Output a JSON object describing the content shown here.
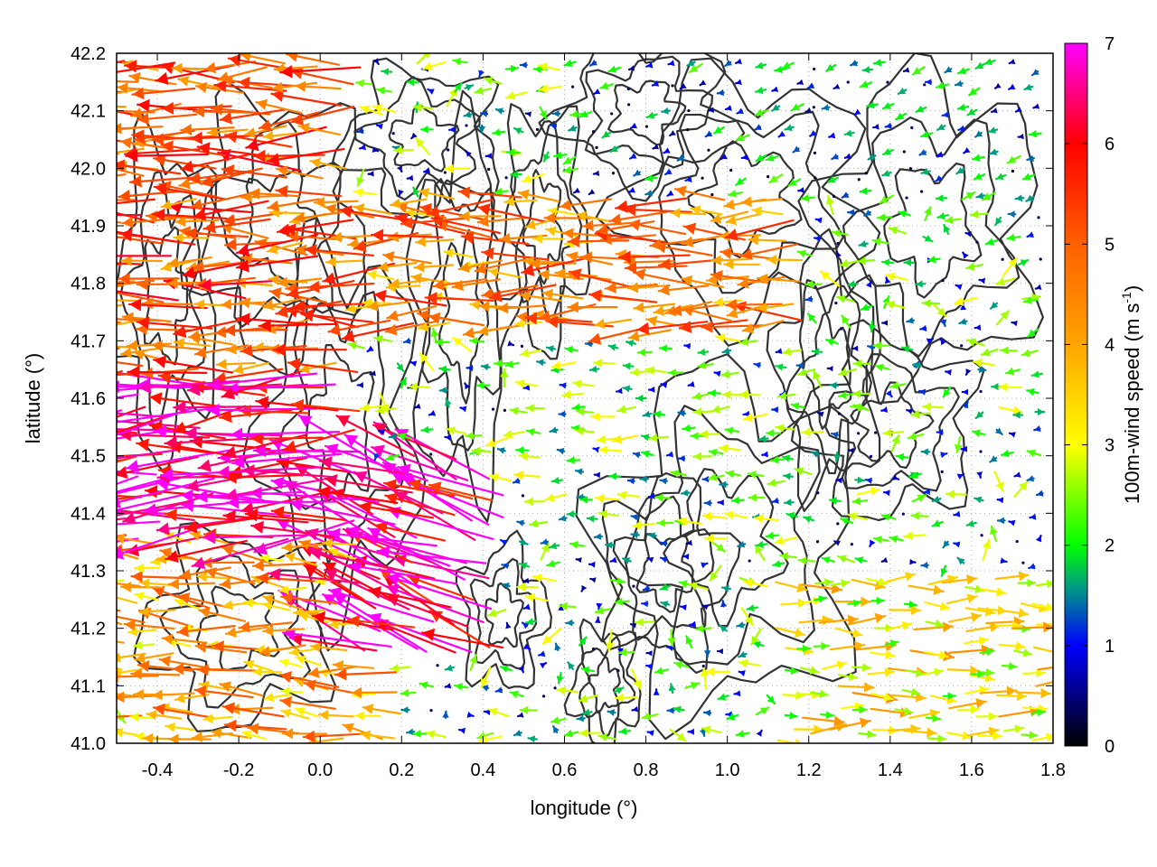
{
  "chart_data": {
    "type": "vector-field",
    "xlabel": "longitude (°)",
    "ylabel": "latitude (°)",
    "xlim": [
      -0.5,
      1.8
    ],
    "ylim": [
      41.0,
      42.2
    ],
    "xticks": [
      "-0.4",
      "-0.2",
      "0.0",
      "0.2",
      "0.4",
      "0.6",
      "0.8",
      "1.0",
      "1.2",
      "1.4",
      "1.6",
      "1.8"
    ],
    "xtick_values": [
      -0.4,
      -0.2,
      0.0,
      0.2,
      0.4,
      0.6,
      0.8,
      1.0,
      1.2,
      1.4,
      1.6,
      1.8
    ],
    "yticks": [
      "41.0",
      "41.1",
      "41.2",
      "41.3",
      "41.4",
      "41.5",
      "41.6",
      "41.7",
      "41.8",
      "41.9",
      "42.0",
      "42.1",
      "42.2"
    ],
    "ytick_values": [
      41.0,
      41.1,
      41.2,
      41.3,
      41.4,
      41.5,
      41.6,
      41.7,
      41.8,
      41.9,
      42.0,
      42.1,
      42.2
    ],
    "grid": true,
    "colorbar": {
      "label": "100m-wind speed (m s",
      "label_superscript": "-1",
      "label_suffix": ")",
      "range": [
        0,
        7
      ],
      "ticks": [
        "0",
        "1",
        "2",
        "3",
        "4",
        "5",
        "6",
        "7"
      ],
      "tick_values": [
        0,
        1,
        2,
        3,
        4,
        5,
        6,
        7
      ],
      "stops": [
        {
          "value": 0,
          "color": "#000000"
        },
        {
          "value": 1,
          "color": "#0000ff"
        },
        {
          "value": 1.6,
          "color": "#009f7f"
        },
        {
          "value": 2,
          "color": "#00ff00"
        },
        {
          "value": 3,
          "color": "#ffff00"
        },
        {
          "value": 4,
          "color": "#ffa500"
        },
        {
          "value": 5,
          "color": "#ff6000"
        },
        {
          "value": 6,
          "color": "#ff0000"
        },
        {
          "value": 7,
          "color": "#ff00ff"
        }
      ]
    },
    "wind_regions": [
      {
        "lon": [
          -0.5,
          0.1
        ],
        "lat": [
          41.35,
          41.65
        ],
        "speed": 6.6,
        "dir_deg": 185
      },
      {
        "lon": [
          0.1,
          0.45
        ],
        "lat": [
          41.15,
          41.5
        ],
        "speed": 6.5,
        "dir_deg": 160
      },
      {
        "lon": [
          -0.5,
          0.1
        ],
        "lat": [
          41.65,
          42.2
        ],
        "speed": 5.0,
        "dir_deg": 180
      },
      {
        "lon": [
          0.1,
          1.2
        ],
        "lat": [
          41.7,
          41.95
        ],
        "speed": 4.5,
        "dir_deg": 180
      },
      {
        "lon": [
          -0.5,
          0.2
        ],
        "lat": [
          41.0,
          41.35
        ],
        "speed": 4.0,
        "dir_deg": 175
      },
      {
        "lon": [
          1.1,
          1.8
        ],
        "lat": [
          41.0,
          41.3
        ],
        "speed": 3.2,
        "dir_deg": 0
      },
      {
        "lon": [
          0.5,
          1.2
        ],
        "lat": [
          41.35,
          41.7
        ],
        "speed": 2.0,
        "dir_deg": 180
      },
      {
        "lon": [
          0.6,
          1.8
        ],
        "lat": [
          41.95,
          42.2
        ],
        "speed": 1.2,
        "dir_deg": 200
      }
    ],
    "wind_samples": [
      {
        "lon": -0.45,
        "lat": 42.15,
        "speed": 4.8,
        "dir": 178
      },
      {
        "lon": -0.3,
        "lat": 42.05,
        "speed": 5.4,
        "dir": 176
      },
      {
        "lon": 0.3,
        "lat": 41.88,
        "speed": 5.6,
        "dir": 178
      },
      {
        "lon": 0.9,
        "lat": 41.83,
        "speed": 5.2,
        "dir": 182
      },
      {
        "lon": -0.2,
        "lat": 41.63,
        "speed": 6.7,
        "dir": 184
      },
      {
        "lon": 0.0,
        "lat": 41.48,
        "speed": 6.8,
        "dir": 183
      },
      {
        "lon": 0.3,
        "lat": 41.4,
        "speed": 6.6,
        "dir": 155
      },
      {
        "lon": 0.2,
        "lat": 41.3,
        "speed": 6.5,
        "dir": 168
      },
      {
        "lon": 0.8,
        "lat": 41.6,
        "speed": 1.8,
        "dir": 180
      },
      {
        "lon": 1.0,
        "lat": 41.45,
        "speed": 1.5,
        "dir": 180
      },
      {
        "lon": 1.6,
        "lat": 41.12,
        "speed": 2.2,
        "dir": 0
      },
      {
        "lon": 1.7,
        "lat": 41.2,
        "speed": 4.2,
        "dir": 2
      },
      {
        "lon": 1.2,
        "lat": 42.1,
        "speed": 0.5,
        "dir": 200
      },
      {
        "lon": 1.5,
        "lat": 42.15,
        "speed": 1.1,
        "dir": 180
      }
    ]
  }
}
